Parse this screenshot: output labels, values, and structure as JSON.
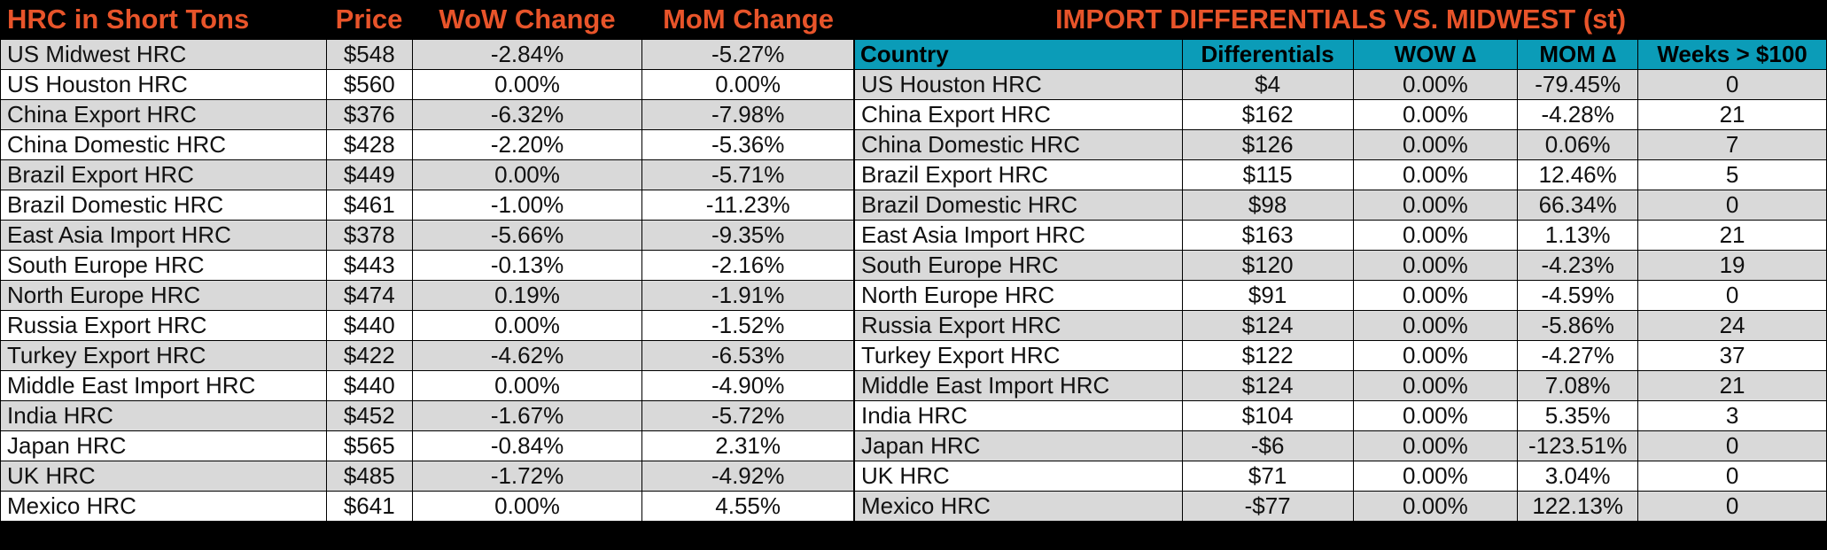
{
  "left": {
    "headers": {
      "name": "HRC in Short Tons",
      "price": "Price",
      "wow": "WoW Change",
      "mom": "MoM Change"
    },
    "rows": [
      {
        "name": "US Midwest HRC",
        "price": "$548",
        "wow": "-2.84%",
        "mom": "-5.27%"
      },
      {
        "name": "US Houston HRC",
        "price": "$560",
        "wow": "0.00%",
        "mom": "0.00%"
      },
      {
        "name": "China Export HRC",
        "price": "$376",
        "wow": "-6.32%",
        "mom": "-7.98%"
      },
      {
        "name": "China Domestic HRC",
        "price": "$428",
        "wow": "-2.20%",
        "mom": "-5.36%"
      },
      {
        "name": "Brazil Export HRC",
        "price": "$449",
        "wow": "0.00%",
        "mom": "-5.71%"
      },
      {
        "name": "Brazil Domestic HRC",
        "price": "$461",
        "wow": "-1.00%",
        "mom": "-11.23%"
      },
      {
        "name": "East Asia Import HRC",
        "price": "$378",
        "wow": "-5.66%",
        "mom": "-9.35%"
      },
      {
        "name": "South Europe HRC",
        "price": "$443",
        "wow": "-0.13%",
        "mom": "-2.16%"
      },
      {
        "name": "North Europe HRC",
        "price": "$474",
        "wow": "0.19%",
        "mom": "-1.91%"
      },
      {
        "name": "Russia Export HRC",
        "price": "$440",
        "wow": "0.00%",
        "mom": "-1.52%"
      },
      {
        "name": "Turkey Export HRC",
        "price": "$422",
        "wow": "-4.62%",
        "mom": "-6.53%"
      },
      {
        "name": "Middle East Import HRC",
        "price": "$440",
        "wow": "0.00%",
        "mom": "-4.90%"
      },
      {
        "name": "India HRC",
        "price": "$452",
        "wow": "-1.67%",
        "mom": "-5.72%"
      },
      {
        "name": "Japan HRC",
        "price": "$565",
        "wow": "-0.84%",
        "mom": "2.31%"
      },
      {
        "name": "UK HRC",
        "price": "$485",
        "wow": "-1.72%",
        "mom": "-4.92%"
      },
      {
        "name": "Mexico HRC",
        "price": "$641",
        "wow": "0.00%",
        "mom": "4.55%"
      }
    ]
  },
  "right": {
    "title": "IMPORT DIFFERENTIALS VS. MIDWEST (st)",
    "headers": {
      "country": "Country",
      "diff": "Differentials",
      "wow": "WOW ∆",
      "mom": "MOM ∆",
      "weeks": "Weeks > $100"
    },
    "rows": [
      {
        "name": "US Houston HRC",
        "diff": "$4",
        "wow": "0.00%",
        "mom": "-79.45%",
        "weeks": "0"
      },
      {
        "name": "China Export HRC",
        "diff": "$162",
        "wow": "0.00%",
        "mom": "-4.28%",
        "weeks": "21"
      },
      {
        "name": "China Domestic HRC",
        "diff": "$126",
        "wow": "0.00%",
        "mom": "0.06%",
        "weeks": "7"
      },
      {
        "name": "Brazil Export HRC",
        "diff": "$115",
        "wow": "0.00%",
        "mom": "12.46%",
        "weeks": "5"
      },
      {
        "name": "Brazil Domestic HRC",
        "diff": "$98",
        "wow": "0.00%",
        "mom": "66.34%",
        "weeks": "0"
      },
      {
        "name": "East Asia Import HRC",
        "diff": "$163",
        "wow": "0.00%",
        "mom": "1.13%",
        "weeks": "21"
      },
      {
        "name": "South Europe HRC",
        "diff": "$120",
        "wow": "0.00%",
        "mom": "-4.23%",
        "weeks": "19"
      },
      {
        "name": "North Europe HRC",
        "diff": "$91",
        "wow": "0.00%",
        "mom": "-4.59%",
        "weeks": "0"
      },
      {
        "name": "Russia Export HRC",
        "diff": "$124",
        "wow": "0.00%",
        "mom": "-5.86%",
        "weeks": "24"
      },
      {
        "name": "Turkey Export HRC",
        "diff": "$122",
        "wow": "0.00%",
        "mom": "-4.27%",
        "weeks": "37"
      },
      {
        "name": "Middle East Import HRC",
        "diff": "$124",
        "wow": "0.00%",
        "mom": "7.08%",
        "weeks": "21"
      },
      {
        "name": "India HRC",
        "diff": "$104",
        "wow": "0.00%",
        "mom": "5.35%",
        "weeks": "3"
      },
      {
        "name": "Japan HRC",
        "diff": "-$6",
        "wow": "0.00%",
        "mom": "-123.51%",
        "weeks": "0"
      },
      {
        "name": "UK HRC",
        "diff": "$71",
        "wow": "0.00%",
        "mom": "3.04%",
        "weeks": "0"
      },
      {
        "name": "Mexico HRC",
        "diff": "-$77",
        "wow": "0.00%",
        "mom": "122.13%",
        "weeks": "0"
      }
    ]
  },
  "colors": {
    "background": "#000000",
    "title_orange": "#E8542A",
    "header_teal": "#0B9CB8",
    "row_gray": "#D9D9D9",
    "row_white": "#FFFFFF"
  }
}
